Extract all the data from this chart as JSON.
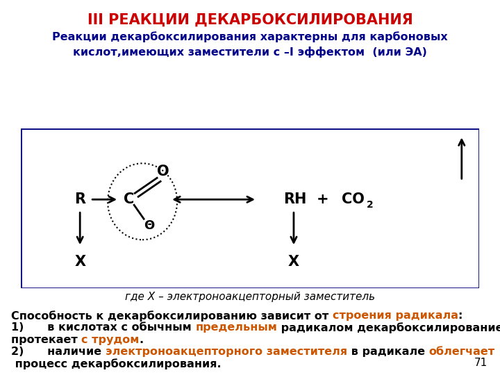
{
  "title": "III РЕАКЦИИ ДЕКАРБОКСИЛИРОВАНИЯ",
  "title_color": "#cc0000",
  "subtitle_line1": "Реакции декарбоксилирования характерны для карбоновых",
  "subtitle_line2": "кислот,имеющих заместители с –I эффектом  (или ЭА)",
  "subtitle_color": "#00008B",
  "where_text": "где X – электроноакцепторный заместитель",
  "page_number": "71",
  "bg_color": "#ffffff",
  "box_color": "#000080",
  "orange_color": "#cc5500"
}
